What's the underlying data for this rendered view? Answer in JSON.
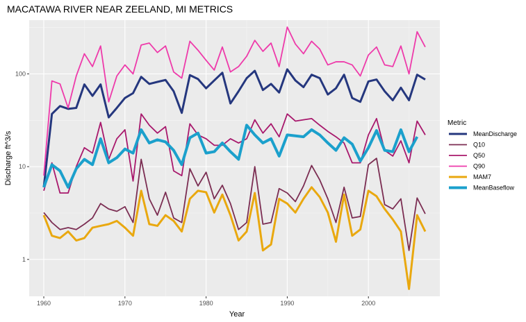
{
  "chart_data": {
    "type": "line",
    "title": "MACATAWA RIVER NEAR ZEELAND, MI  METRICS",
    "xlabel": "Year",
    "ylabel": "Discharge ft^3/s",
    "y_scale": "log",
    "xlim": [
      1958.2,
      2008.8
    ],
    "ylim": [
      0.4,
      380
    ],
    "x_ticks": [
      1960,
      1970,
      1980,
      1990,
      2000
    ],
    "x_tick_labels": [
      "1960",
      "1970",
      "1980",
      "1990",
      "2000"
    ],
    "y_ticks": [
      1,
      10,
      100
    ],
    "y_tick_labels": [
      "1",
      "10",
      "100"
    ],
    "grid": true,
    "legend_position": "right",
    "legend_title": "Metric",
    "x": [
      1960,
      1961,
      1962,
      1963,
      1964,
      1965,
      1966,
      1967,
      1968,
      1969,
      1970,
      1971,
      1972,
      1973,
      1974,
      1975,
      1976,
      1977,
      1978,
      1979,
      1980,
      1981,
      1982,
      1983,
      1984,
      1985,
      1986,
      1987,
      1988,
      1989,
      1990,
      1991,
      1992,
      1993,
      1994,
      1995,
      1996,
      1997,
      1998,
      1999,
      2000,
      2001,
      2002,
      2003,
      2004,
      2005,
      2006,
      2007
    ],
    "series": [
      {
        "name": "MeanDischarge",
        "color": "#25377e",
        "width": 3,
        "values": [
          6,
          37,
          45,
          42,
          43,
          77,
          58,
          77,
          34,
          43,
          55,
          62,
          93,
          78,
          82,
          86,
          65,
          38,
          97,
          88,
          70,
          85,
          103,
          48,
          65,
          90,
          108,
          67,
          78,
          63,
          112,
          85,
          72,
          98,
          90,
          60,
          70,
          98,
          55,
          50,
          83,
          87,
          65,
          52,
          71,
          52,
          98,
          87
        ]
      },
      {
        "name": "Q10",
        "color": "#7b2d52",
        "width": 1.8,
        "values": [
          3.2,
          2.5,
          2.1,
          2.2,
          2.1,
          2.4,
          2.8,
          4.0,
          3.5,
          3.3,
          3.7,
          2.5,
          12,
          4.5,
          3.0,
          5.3,
          2.8,
          2.5,
          9.5,
          6.2,
          8.7,
          4.5,
          6.3,
          4.0,
          2.1,
          2.5,
          10,
          2.4,
          2.5,
          5.8,
          5.2,
          4.2,
          6.2,
          10.3,
          7.2,
          4.5,
          2.5,
          6.0,
          2.8,
          2.9,
          10.5,
          12.3,
          3.9,
          3.5,
          4.5,
          1.25,
          4.6,
          3.1
        ]
      },
      {
        "name": "Q50",
        "color": "#a8186c",
        "width": 1.8,
        "values": [
          5.5,
          11,
          5.2,
          5.2,
          10,
          16,
          14,
          30,
          12,
          20,
          25,
          7,
          37,
          28,
          23,
          27,
          9,
          8,
          29,
          22,
          20,
          17,
          17,
          20,
          18,
          20,
          32,
          23,
          29,
          21,
          37,
          31,
          32,
          33,
          28,
          24,
          21,
          18,
          11,
          11,
          22,
          33,
          15,
          13,
          19,
          11,
          31,
          22
        ]
      },
      {
        "name": "Q90",
        "color": "#ee3aaa",
        "width": 1.8,
        "values": [
          8,
          84,
          78,
          43,
          95,
          165,
          120,
          200,
          50,
          95,
          125,
          100,
          205,
          215,
          170,
          200,
          105,
          90,
          225,
          180,
          140,
          110,
          195,
          105,
          120,
          155,
          230,
          175,
          215,
          120,
          320,
          210,
          165,
          225,
          185,
          125,
          135,
          135,
          125,
          95,
          160,
          195,
          125,
          120,
          200,
          100,
          285,
          195
        ]
      },
      {
        "name": "MAM7",
        "color": "#e9a80f",
        "width": 3,
        "values": [
          3.0,
          1.8,
          1.7,
          2.0,
          1.6,
          1.7,
          2.2,
          2.3,
          2.4,
          2.6,
          2.2,
          1.8,
          5.5,
          2.4,
          2.3,
          3.0,
          2.6,
          2.0,
          4.5,
          5.5,
          5.3,
          3.2,
          5.0,
          3.0,
          1.6,
          2.0,
          5.2,
          1.25,
          1.45,
          4.5,
          4.0,
          3.2,
          4.5,
          6.0,
          4.7,
          3.2,
          1.55,
          5.0,
          1.8,
          2.1,
          5.5,
          4.8,
          3.5,
          2.7,
          2.0,
          0.48,
          3.0,
          2.0
        ]
      },
      {
        "name": "MeanBaseflow",
        "color": "#1ba0cc",
        "width": 4,
        "values": [
          6,
          10.5,
          9.0,
          6.0,
          9.5,
          12.0,
          10.5,
          20.0,
          11.0,
          12.5,
          15.5,
          14.0,
          25.0,
          18.0,
          19.5,
          18.5,
          15.0,
          10.5,
          20.5,
          23.0,
          14.0,
          14.5,
          18.0,
          14.5,
          12.0,
          28.0,
          22.0,
          18.0,
          20.0,
          13.0,
          22.0,
          21.5,
          21.0,
          25.0,
          22.0,
          18.0,
          15.0,
          20.5,
          17.5,
          11.5,
          16.0,
          24.5,
          15.0,
          14.5,
          25.0,
          14.5,
          21.0,
          null
        ]
      }
    ]
  }
}
